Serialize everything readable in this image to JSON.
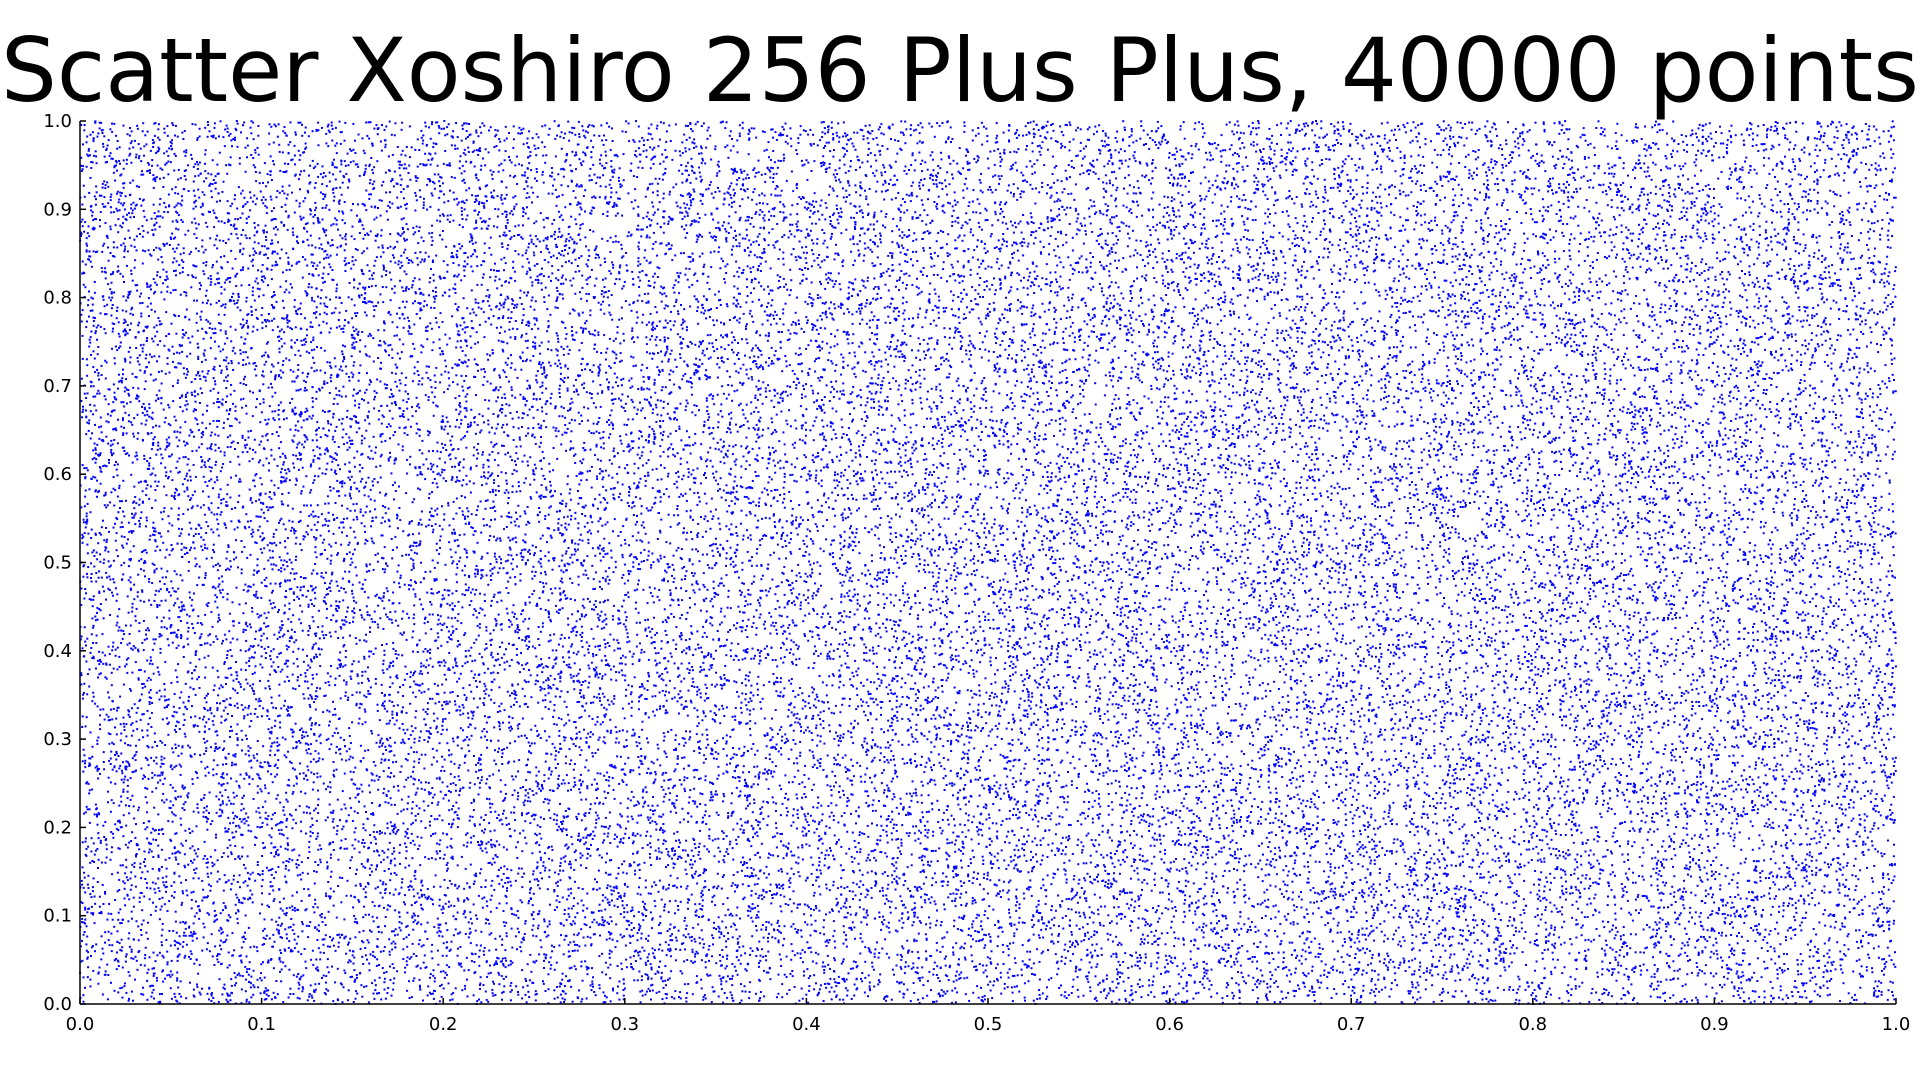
{
  "chart_data": {
    "type": "scatter",
    "title": "Scatter Xoshiro 256 Plus Plus, 40000 points",
    "xlabel": "",
    "ylabel": "",
    "xlim": [
      0.0,
      1.0
    ],
    "ylim": [
      0.0,
      1.0
    ],
    "x_ticks": [
      "0.0",
      "0.1",
      "0.2",
      "0.3",
      "0.4",
      "0.5",
      "0.6",
      "0.7",
      "0.8",
      "0.9",
      "1.0"
    ],
    "y_ticks": [
      "0.0",
      "0.1",
      "0.2",
      "0.3",
      "0.4",
      "0.5",
      "0.6",
      "0.7",
      "0.8",
      "0.9",
      "1.0"
    ],
    "point_count": 40000,
    "point_color": "#0000ff",
    "distribution": "uniform",
    "grid": false,
    "legend": false
  }
}
